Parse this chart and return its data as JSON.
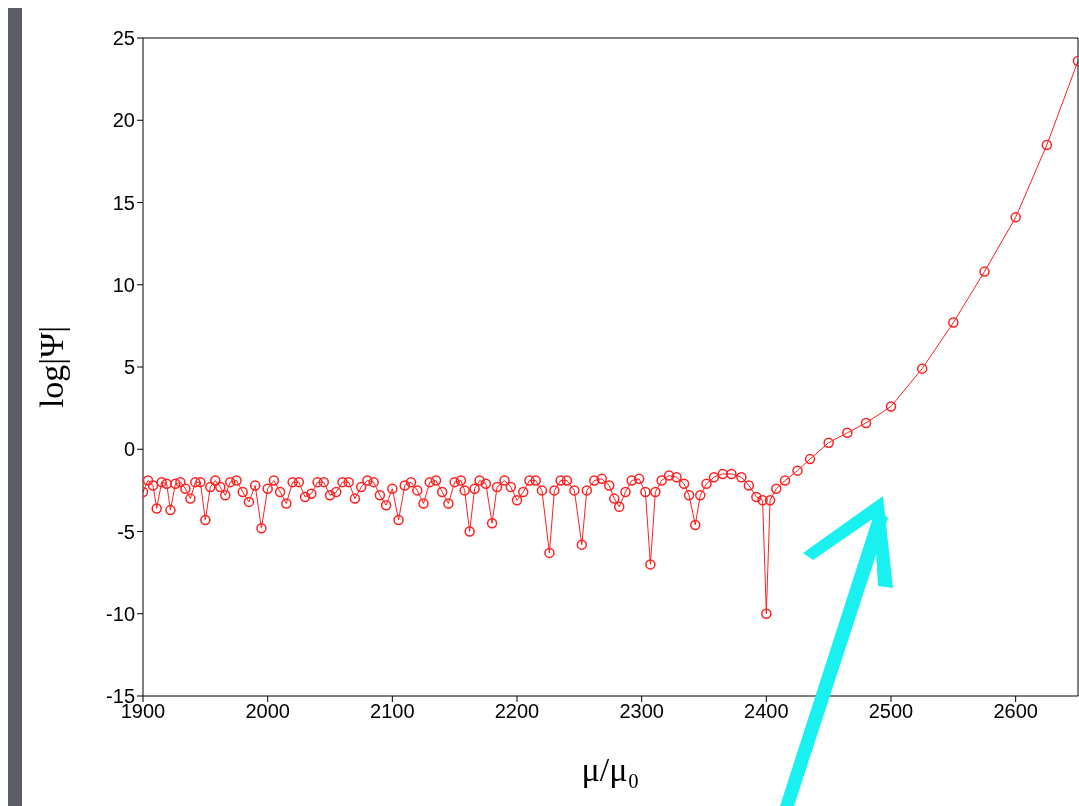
{
  "chart_data": {
    "type": "line",
    "xlabel": "μ/μ₀",
    "ylabel": "log|Ψ|",
    "xlim": [
      1900,
      2650
    ],
    "ylim": [
      -15,
      25
    ],
    "xticks": [
      1900,
      2000,
      2100,
      2200,
      2300,
      2400,
      2500,
      2600
    ],
    "yticks": [
      -15,
      -10,
      -5,
      0,
      5,
      10,
      15,
      20,
      25
    ],
    "grid": false,
    "legend": false,
    "marker": "circle",
    "line_style": "solid",
    "series": [
      {
        "color": "#ff2020",
        "x": [
          1900,
          1904,
          1908,
          1911,
          1915,
          1919,
          1922,
          1926,
          1930,
          1934,
          1938,
          1942,
          1946,
          1950,
          1954,
          1958,
          1962,
          1966,
          1970,
          1975,
          1980,
          1985,
          1990,
          1995,
          2000,
          2005,
          2010,
          2015,
          2020,
          2025,
          2030,
          2035,
          2040,
          2045,
          2050,
          2055,
          2060,
          2065,
          2070,
          2075,
          2080,
          2085,
          2090,
          2095,
          2100,
          2105,
          2110,
          2115,
          2120,
          2125,
          2130,
          2135,
          2140,
          2145,
          2150,
          2155,
          2158,
          2162,
          2166,
          2170,
          2175,
          2180,
          2184,
          2190,
          2195,
          2200,
          2205,
          2210,
          2215,
          2220,
          2226,
          2230,
          2235,
          2240,
          2246,
          2252,
          2256,
          2262,
          2268,
          2274,
          2278,
          2282,
          2287,
          2292,
          2298,
          2303,
          2307,
          2311,
          2316,
          2322,
          2328,
          2334,
          2338,
          2343,
          2347,
          2352,
          2358,
          2365,
          2372,
          2380,
          2386,
          2392,
          2397,
          2400,
          2403,
          2408,
          2415,
          2425,
          2435,
          2450,
          2465,
          2480,
          2500,
          2525,
          2550,
          2575,
          2600,
          2625,
          2650
        ],
        "values": [
          -2.6,
          -1.9,
          -2.2,
          -3.6,
          -2.0,
          -2.1,
          -3.7,
          -2.1,
          -2.0,
          -2.4,
          -3.0,
          -2.0,
          -2.0,
          -4.3,
          -2.3,
          -1.9,
          -2.3,
          -2.8,
          -2.0,
          -1.9,
          -2.6,
          -3.2,
          -2.2,
          -4.8,
          -2.4,
          -1.9,
          -2.6,
          -3.3,
          -2.0,
          -2.0,
          -2.9,
          -2.7,
          -2.0,
          -2.0,
          -2.8,
          -2.6,
          -2.0,
          -2.0,
          -3.0,
          -2.3,
          -1.9,
          -2.0,
          -2.8,
          -3.4,
          -2.4,
          -4.3,
          -2.2,
          -2.0,
          -2.5,
          -3.3,
          -2.0,
          -1.9,
          -2.6,
          -3.3,
          -2.0,
          -1.9,
          -2.5,
          -5.0,
          -2.4,
          -1.9,
          -2.1,
          -4.5,
          -2.3,
          -1.9,
          -2.3,
          -3.1,
          -2.6,
          -1.9,
          -1.9,
          -2.5,
          -6.3,
          -2.5,
          -1.9,
          -1.9,
          -2.5,
          -5.8,
          -2.5,
          -1.9,
          -1.8,
          -2.2,
          -3.0,
          -3.5,
          -2.6,
          -1.9,
          -1.8,
          -2.6,
          -7.0,
          -2.6,
          -1.9,
          -1.6,
          -1.7,
          -2.1,
          -2.8,
          -4.6,
          -2.8,
          -2.1,
          -1.7,
          -1.5,
          -1.5,
          -1.7,
          -2.2,
          -2.9,
          -3.1,
          -10.0,
          -3.1,
          -2.4,
          -1.9,
          -1.3,
          -0.6,
          0.4,
          1.0,
          1.6,
          2.6,
          4.9,
          7.7,
          10.8,
          14.1,
          18.5,
          23.6
        ]
      }
    ]
  }
}
